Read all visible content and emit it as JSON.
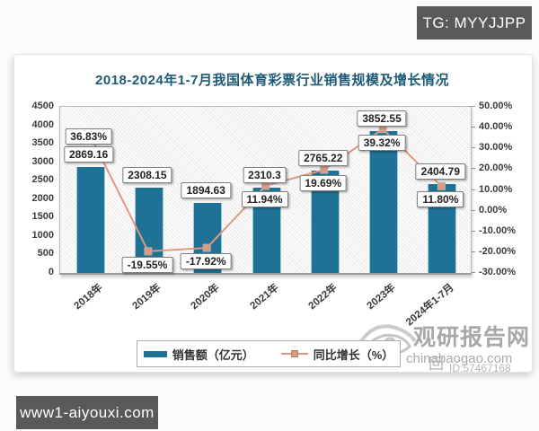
{
  "page": {
    "top_right_tag": "TG: MYYJJPP",
    "bottom_left_tag": "www1-aiyouxi.com"
  },
  "watermark": {
    "site_name": "观研报告网",
    "site_url": "chinabaogao.com",
    "overlay_id": "ID:57467168",
    "logo": "eye-swirl-icon"
  },
  "chart_data": {
    "type": "bar+line",
    "title": "2018-2024年1-7月我国体育彩票行业销售规模及增长情况",
    "categories": [
      "2018年",
      "2019年",
      "2020年",
      "2021年",
      "2022年",
      "2023年",
      "2024年1-7月"
    ],
    "series": [
      {
        "name": "销售额（亿元）",
        "type": "bar",
        "axis": "left",
        "color": "#1f7195",
        "values": [
          2869.16,
          2308.15,
          1894.63,
          2310.3,
          2765.22,
          3852.55,
          2404.79
        ],
        "labels": [
          "2869.16",
          "2308.15",
          "1894.63",
          "2310.3",
          "2765.22",
          "3852.55",
          "2404.79"
        ]
      },
      {
        "name": "同比增长（%）",
        "type": "line",
        "axis": "right",
        "color": "#e2987e",
        "marker_color": "#dd9a80",
        "values": [
          36.83,
          -19.55,
          -17.92,
          11.94,
          19.69,
          39.32,
          11.8
        ],
        "labels": [
          "36.83%",
          "-19.55%",
          "-17.92%",
          "11.94%",
          "19.69%",
          "39.32%",
          "11.80%"
        ]
      }
    ],
    "left_axis": {
      "min": 0,
      "max": 4500,
      "ticks": [
        "0",
        "500",
        "1000",
        "1500",
        "2000",
        "2500",
        "3000",
        "3500",
        "4000",
        "4500"
      ]
    },
    "right_axis": {
      "min": -30,
      "max": 50,
      "ticks": [
        "50.00%",
        "40.00%",
        "30.00%",
        "20.00%",
        "10.00%",
        "0.00%",
        "-10.00%",
        "-20.00%",
        "-30.00%"
      ]
    },
    "legend_position": "bottom",
    "plot_background": "diagonal-hatch",
    "grid": "off"
  }
}
